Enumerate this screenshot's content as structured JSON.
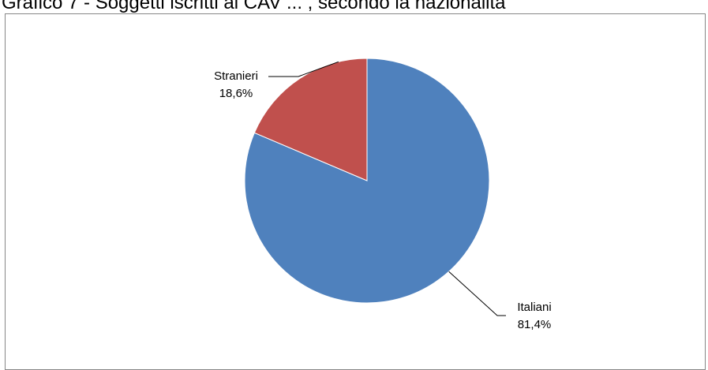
{
  "header": {
    "title": "Grafico 7 - Soggetti iscritti ai CAV ... , secondo la nazionalità"
  },
  "chart_data": {
    "type": "pie",
    "title": "",
    "start_angle_deg": 0,
    "direction": "clockwise",
    "slices": [
      {
        "label": "Italiani",
        "value": 81.4,
        "value_label": "81,4%",
        "color": "#4F81BD"
      },
      {
        "label": "Stranieri",
        "value": 18.6,
        "value_label": "18,6%",
        "color": "#C0504D"
      }
    ]
  }
}
